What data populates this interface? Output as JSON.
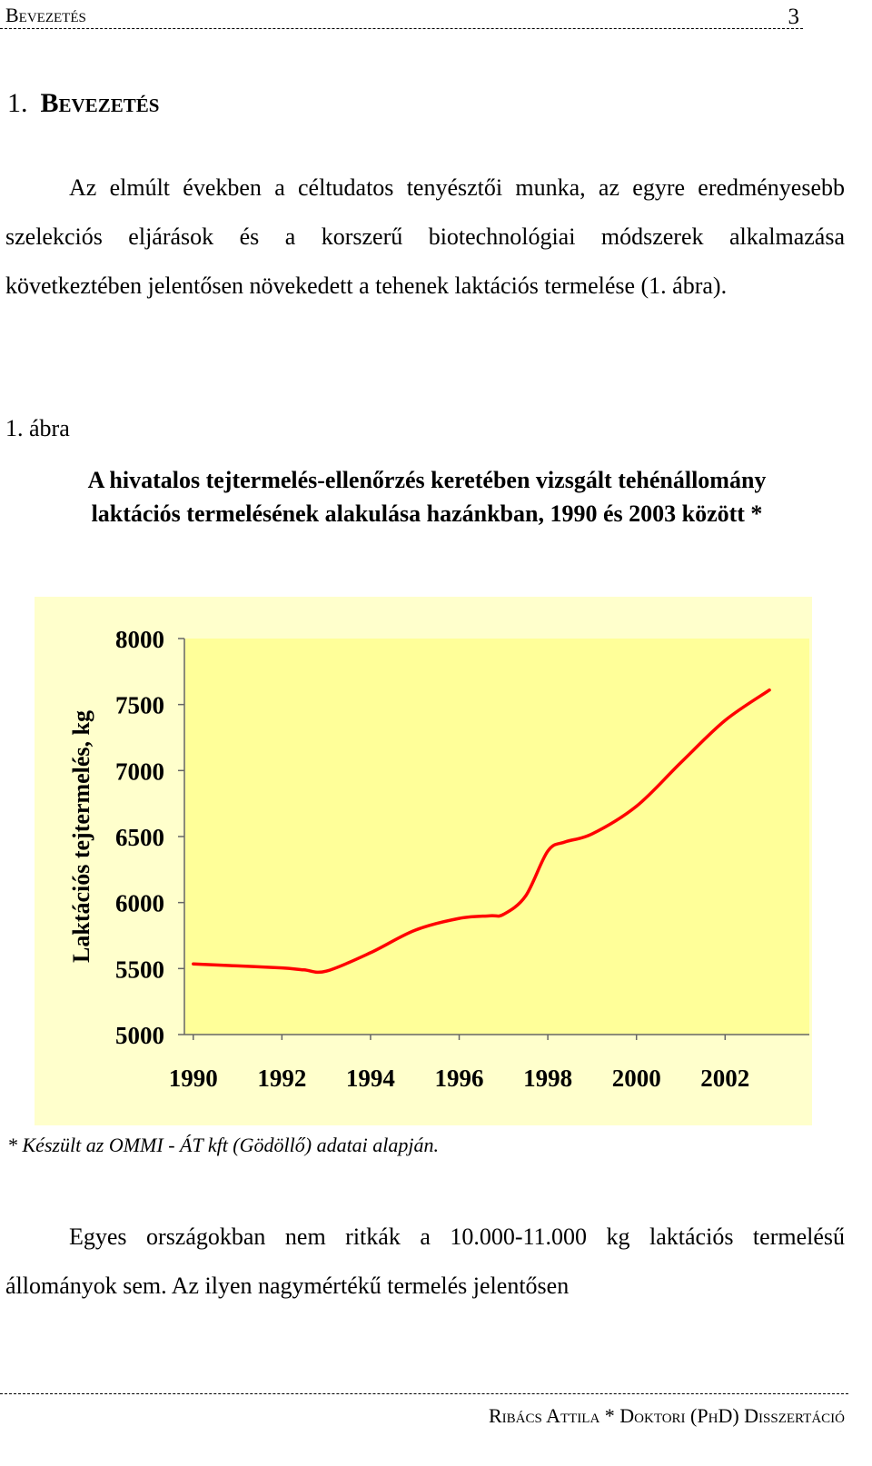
{
  "header": {
    "section": "Bevezetés",
    "page_number": "3"
  },
  "chapter": {
    "number": "1.",
    "title": "Bevezetés"
  },
  "paragraph1": "Az elmúlt években a céltudatos tenyésztői munka, az egyre eredményesebb szelekciós eljárások és a korszerű biotechnológiai módszerek alkalmazása következtében jelentősen növekedett a tehenek laktációs termelése (1. ábra).",
  "figure": {
    "label": "1. ábra",
    "caption_line1": "A hivatalos tejtermelés-ellenőrzés keretében vizsgált tehénállomány",
    "caption_line2": "laktációs termelésének alakulása hazánkban, 1990 és 2003 között *",
    "footnote": "* Készült az OMMI - ÁT kft (Gödöllő) adatai alapján."
  },
  "chart_data": {
    "type": "line",
    "title": "",
    "xlabel": "",
    "ylabel": "Laktációs tejtermelés, kg",
    "x": [
      1990,
      1991,
      1992,
      1992.5,
      1993,
      1994,
      1995,
      1996,
      1996.7,
      1997,
      1997.5,
      1998,
      1998.4,
      1999,
      2000,
      2001,
      2002,
      2003
    ],
    "series": [
      {
        "name": "",
        "values": [
          5535,
          5520,
          5505,
          5490,
          5480,
          5620,
          5790,
          5880,
          5900,
          5910,
          6050,
          6390,
          6460,
          6520,
          6730,
          7060,
          7380,
          7610
        ],
        "color": "#FF0000"
      }
    ],
    "xlim": [
      1989.8,
      2003.9
    ],
    "ylim": [
      5000,
      8000
    ],
    "yticks": [
      5000,
      5500,
      6000,
      6500,
      7000,
      7500,
      8000
    ],
    "xticks": [
      1990,
      1992,
      1994,
      1996,
      1998,
      2000,
      2002
    ],
    "plot_background": "#FFFF99",
    "chart_background": "#FFFFCC",
    "grid": false,
    "legend": "none"
  },
  "paragraph2": "Egyes országokban nem ritkák a 10.000-11.000 kg laktációs termelésű állományok sem. Az ilyen nagymértékű termelés jelentősen",
  "footer": {
    "text": "Ribács Attila * Doktori (PhD) Disszertáció"
  }
}
